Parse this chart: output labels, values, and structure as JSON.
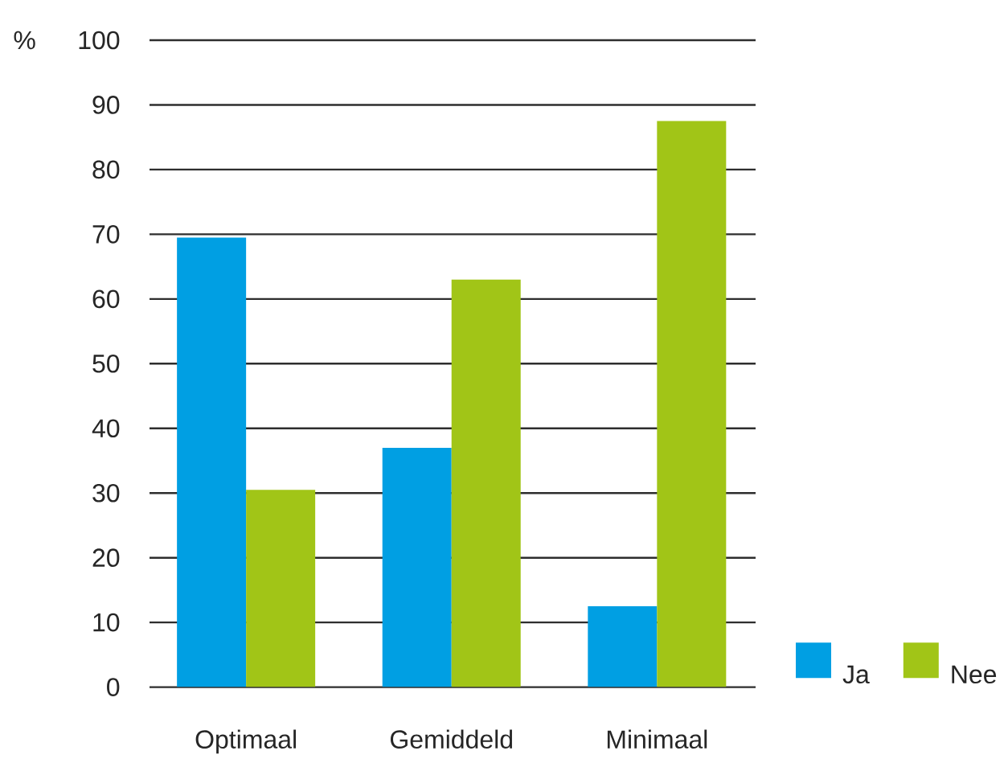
{
  "chart_data": {
    "type": "bar",
    "ylabel": "%",
    "categories": [
      "Optimaal",
      "Gemiddeld",
      "Minimaal"
    ],
    "series": [
      {
        "name": "Ja",
        "color": "#009fe3",
        "values": [
          69.5,
          37,
          12.5
        ]
      },
      {
        "name": "Nee",
        "color": "#a1c517",
        "values": [
          30.5,
          63,
          87.5
        ]
      }
    ],
    "ylim": [
      0,
      100
    ],
    "yticks": [
      0,
      10,
      20,
      30,
      40,
      50,
      60,
      70,
      80,
      90,
      100
    ],
    "grid": "y",
    "legend": "bottom right"
  }
}
